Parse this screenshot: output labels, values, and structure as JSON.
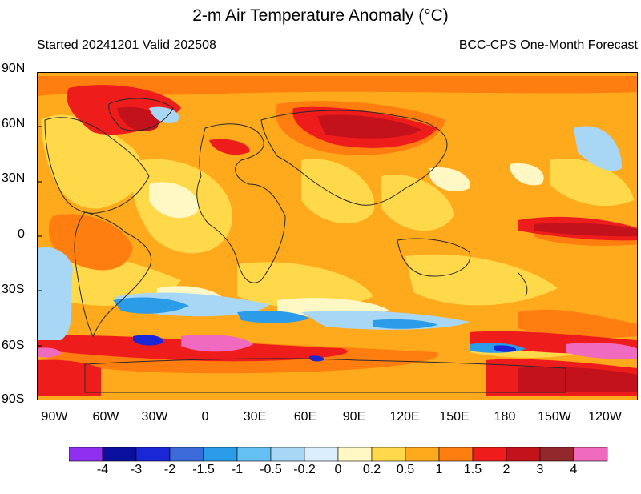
{
  "title": "2-m Air Temperature Anomaly (°C)",
  "subtitle_left": "Started 20241201  Valid 202508",
  "subtitle_right": "BCC-CPS One-Month Forecast",
  "lat_labels": [
    "90N",
    "60N",
    "30N",
    "0",
    "30S",
    "60S",
    "90S"
  ],
  "lon_labels": [
    "90W",
    "60W",
    "30W",
    "0",
    "30E",
    "60E",
    "90E",
    "120E",
    "150E",
    "180",
    "150W",
    "120W"
  ],
  "colorbar": {
    "labels": [
      "-4",
      "-3",
      "-2",
      "-1.5",
      "-1",
      "-0.5",
      "-0.2",
      "0",
      "0.2",
      "0.5",
      "1",
      "1.5",
      "2",
      "3",
      "4"
    ],
    "colors": [
      "#8f2ff0",
      "#0a0f9e",
      "#1a27d6",
      "#3b6ad9",
      "#2b9de8",
      "#64bff2",
      "#a8d6f5",
      "#dbeefd",
      "#fff8c4",
      "#ffd94a",
      "#ffa91c",
      "#ff7e0f",
      "#ef1c1c",
      "#c3121b",
      "#92282c",
      "#f06ac0"
    ]
  }
}
